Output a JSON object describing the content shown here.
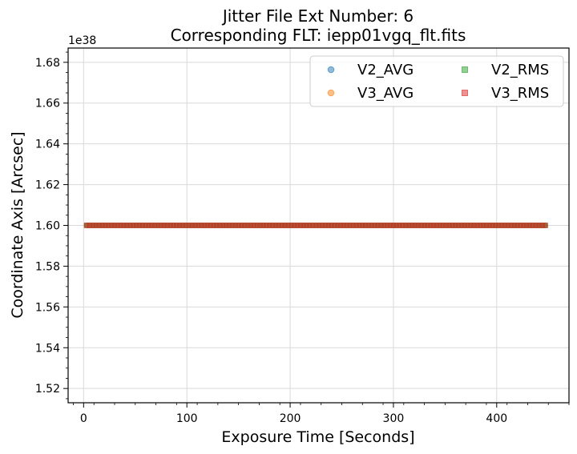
{
  "chart_data": {
    "type": "scatter",
    "title_line1": "Jitter File Ext Number: 6",
    "title_line2": "Corresponding FLT: iepp01vgq_flt.fits",
    "xlabel": "Exposure Time [Seconds]",
    "ylabel": "Coordinate Axis [Arcsec]",
    "y_offset_label": "1e38",
    "xlim": [
      -15,
      470
    ],
    "ylim": [
      1.513,
      1.687
    ],
    "xticks": [
      0,
      100,
      200,
      300,
      400
    ],
    "yticks": [
      1.52,
      1.54,
      1.56,
      1.58,
      1.6,
      1.62,
      1.64,
      1.66,
      1.68
    ],
    "ytick_labels": [
      "1.52",
      "1.54",
      "1.56",
      "1.58",
      "1.60",
      "1.62",
      "1.64",
      "1.66",
      "1.68"
    ],
    "grid": true,
    "legend_position": "top-right",
    "x_start": 3,
    "x_end": 447,
    "x_step": 3,
    "series": [
      {
        "name": "V2_AVG",
        "marker": "circle",
        "color": "#1f77b4",
        "y": 1.6
      },
      {
        "name": "V3_AVG",
        "marker": "circle",
        "color": "#ff7f0e",
        "y": 1.6
      },
      {
        "name": "V2_RMS",
        "marker": "square",
        "color": "#2ca02c",
        "y": 1.6
      },
      {
        "name": "V3_RMS",
        "marker": "square",
        "color": "#d62728",
        "y": 1.6
      }
    ]
  }
}
